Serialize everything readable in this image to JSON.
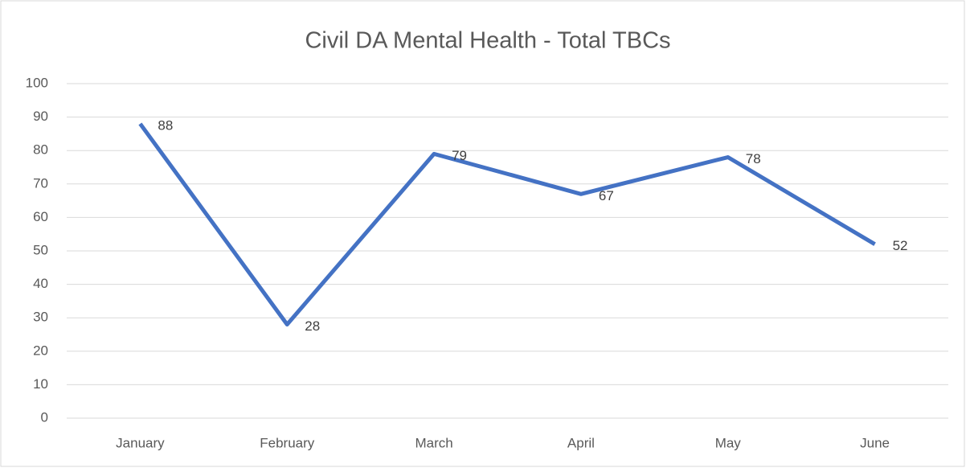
{
  "chart_data": {
    "type": "line",
    "title": "Civil DA Mental Health - Total TBCs",
    "categories": [
      "January",
      "February",
      "March",
      "April",
      "May",
      "June"
    ],
    "values": [
      88,
      28,
      79,
      67,
      78,
      52
    ],
    "color": "#4472c4",
    "ylim": [
      0,
      100
    ],
    "yticks": [
      0,
      10,
      20,
      30,
      40,
      50,
      60,
      70,
      80,
      90,
      100
    ],
    "grid": true
  }
}
